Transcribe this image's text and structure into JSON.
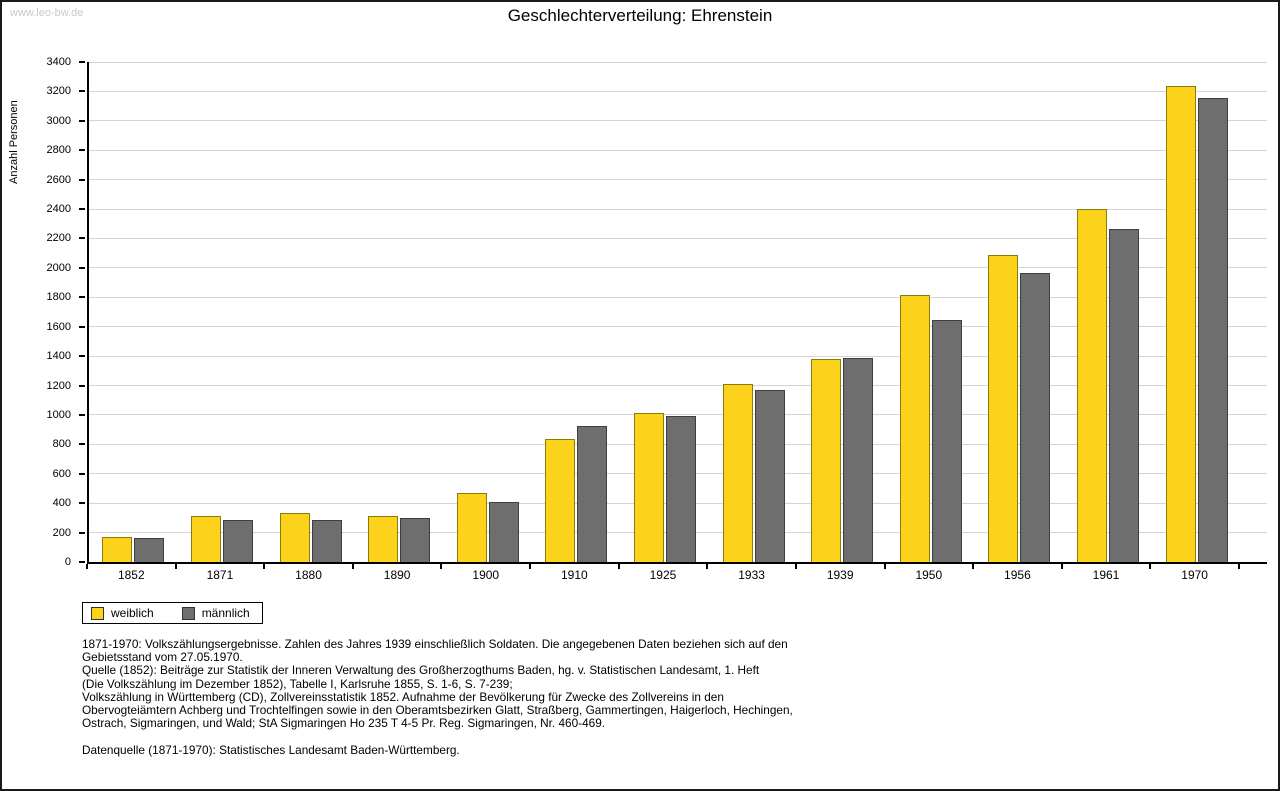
{
  "watermark": "www.leo-bw.de",
  "title": "Geschlechterverteilung: Ehrenstein",
  "footer": {
    "lines": [
      "1871-1970: Volkszählungsergebnisse. Zahlen des Jahres 1939 einschließlich Soldaten. Die angegebenen Daten beziehen sich auf den",
      "Gebietsstand vom 27.05.1970.",
      "Quelle (1852): Beiträge zur Statistik der Inneren Verwaltung des Großherzogthums Baden, hg. v. Statistischen Landesamt, 1. Heft",
      "(Die Volkszählung im Dezember 1852), Tabelle I, Karlsruhe 1855, S. 1-6, S. 7-239;",
      "Volkszählung in Württemberg (CD), Zollvereinsstatistik 1852. Aufnahme der Bevölkerung für Zwecke des Zollvereins in den",
      "Obervogteiämtern Achberg und Trochtelfingen sowie in den Oberamtsbezirken Glatt, Straßberg, Gammertingen, Haigerloch, Hechingen,",
      "Ostrach, Sigmaringen, und Wald; StA Sigmaringen Ho 235 T 4-5 Pr. Reg. Sigmaringen, Nr. 460-469."
    ],
    "datasource": "Datenquelle (1871-1970): Statistisches Landesamt Baden-Württemberg."
  },
  "chart_data": {
    "type": "bar",
    "title": "Geschlechterverteilung: Ehrenstein",
    "xlabel": "",
    "ylabel": "Anzahl Personen",
    "ylim": [
      0,
      3400
    ],
    "ytick_step": 200,
    "grid": "horizontal",
    "legend_position": "bottom-left",
    "categories": [
      "1852",
      "1871",
      "1880",
      "1890",
      "1900",
      "1910",
      "1925",
      "1933",
      "1939",
      "1950",
      "1956",
      "1961",
      "1970"
    ],
    "series": [
      {
        "name": "weiblich",
        "color": "#fcd21b",
        "border_color": "#8a7a14",
        "values": [
          170,
          313,
          333,
          313,
          470,
          838,
          1014,
          1210,
          1380,
          1815,
          2090,
          2400,
          3238
        ]
      },
      {
        "name": "männlich",
        "color": "#6e6e6e",
        "border_color": "#3f3f3f",
        "values": [
          160,
          287,
          287,
          300,
          408,
          925,
          993,
          1170,
          1388,
          1648,
          1966,
          2265,
          3155
        ]
      }
    ]
  }
}
